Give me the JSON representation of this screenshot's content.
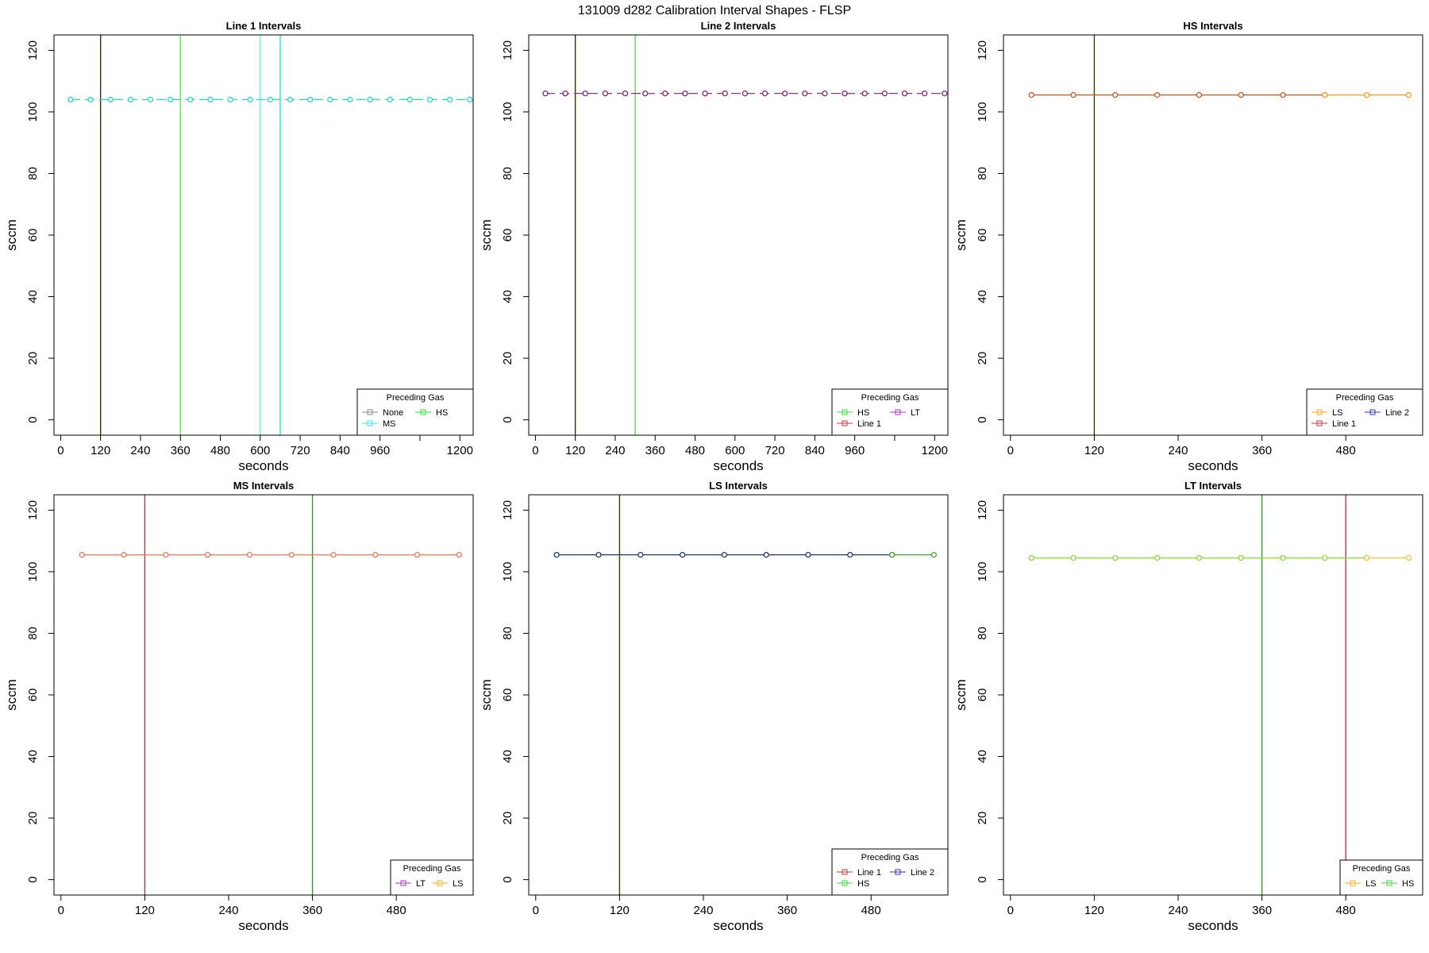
{
  "title": "131009   d282   Calibration Interval Shapes - FLSP",
  "legend_title": "Preceding Gas",
  "chart_data": [
    {
      "type": "line",
      "title": "Line 1 Intervals",
      "xlabel": "seconds",
      "ylabel": "sccm",
      "xlim": [
        -20,
        1240
      ],
      "ylim": [
        -5,
        125
      ],
      "xticks": [
        0,
        120,
        240,
        360,
        480,
        600,
        720,
        840,
        960,
        1080,
        1200
      ],
      "xtick_labels": [
        "0",
        "120",
        "240",
        "360",
        "480",
        "600",
        "720",
        "840",
        "960",
        "",
        "1200"
      ],
      "yticks": [
        0,
        20,
        40,
        60,
        80,
        100,
        120
      ],
      "legend_entries": [
        {
          "label": "None",
          "color": "#888888"
        },
        {
          "label": "HS",
          "color": "#33dd33"
        },
        {
          "label": "MS",
          "color": "#33e8e8"
        }
      ],
      "legend_cols": 2,
      "vlines": [
        {
          "x": 120,
          "color": "#333300"
        },
        {
          "x": 360,
          "color": "#66dd66"
        },
        {
          "x": 600,
          "color": "#66eeee"
        },
        {
          "x": 660,
          "color": "#33dddd"
        }
      ],
      "series": [
        {
          "color": "#22dcc8",
          "dashed": true,
          "x": [
            30,
            90,
            150,
            210,
            270,
            330,
            390,
            450,
            510,
            570,
            630,
            690,
            750,
            810,
            870,
            930,
            990,
            1050,
            1110,
            1170,
            1230
          ],
          "y": [
            104,
            104,
            104,
            104,
            104,
            104,
            104,
            104,
            104,
            104,
            104,
            104,
            104,
            104,
            104,
            104,
            104,
            104,
            104,
            104,
            104
          ]
        }
      ]
    },
    {
      "type": "line",
      "title": "Line 2 Intervals",
      "xlabel": "seconds",
      "ylabel": "sccm",
      "xlim": [
        -20,
        1240
      ],
      "ylim": [
        -5,
        125
      ],
      "xticks": [
        0,
        120,
        240,
        360,
        480,
        600,
        720,
        840,
        960,
        1080,
        1200
      ],
      "xtick_labels": [
        "0",
        "120",
        "240",
        "360",
        "480",
        "600",
        "720",
        "840",
        "960",
        "",
        "1200"
      ],
      "yticks": [
        0,
        20,
        40,
        60,
        80,
        100,
        120
      ],
      "legend_entries": [
        {
          "label": "HS",
          "color": "#33dd33"
        },
        {
          "label": "LT",
          "color": "#aa33cc"
        },
        {
          "label": "Line 1",
          "color": "#dd3333"
        }
      ],
      "legend_cols": 2,
      "vlines": [
        {
          "x": 120,
          "color": "#333300"
        },
        {
          "x": 300,
          "color": "#66dd44"
        }
      ],
      "series": [
        {
          "color": "#882266",
          "dashed": true,
          "x": [
            30,
            90,
            150,
            210,
            270,
            330,
            390,
            450,
            510,
            570,
            630,
            690,
            750,
            810,
            870,
            930,
            990,
            1050,
            1110,
            1170,
            1230
          ],
          "y": [
            106,
            106,
            106,
            106,
            106,
            106,
            106,
            106,
            106,
            106,
            106,
            106,
            106,
            106,
            106,
            106,
            106,
            106,
            106,
            106,
            106
          ]
        }
      ]
    },
    {
      "type": "line",
      "title": "HS Intervals",
      "xlabel": "seconds",
      "ylabel": "sccm",
      "xlim": [
        -10,
        590
      ],
      "ylim": [
        -5,
        125
      ],
      "xticks": [
        0,
        120,
        240,
        360,
        480
      ],
      "xtick_labels": [
        "0",
        "120",
        "240",
        "360",
        "480"
      ],
      "yticks": [
        0,
        20,
        40,
        60,
        80,
        100,
        120
      ],
      "legend_entries": [
        {
          "label": "LS",
          "color": "#ffaa22"
        },
        {
          "label": "Line 2",
          "color": "#3333cc"
        },
        {
          "label": "Line 1",
          "color": "#dd3333"
        }
      ],
      "legend_cols": 2,
      "vlines": [
        {
          "x": 120,
          "color": "#2a4a00"
        }
      ],
      "series": [
        {
          "color": "#cc5522",
          "dashed": false,
          "x": [
            30,
            90,
            150,
            210,
            270,
            330,
            390,
            450
          ],
          "y": [
            105.5,
            105.5,
            105.5,
            105.5,
            105.5,
            105.5,
            105.5,
            105.5
          ]
        },
        {
          "color": "#ff9922",
          "dashed": false,
          "x": [
            450,
            510,
            570
          ],
          "y": [
            105.5,
            105.5,
            105.5
          ]
        }
      ]
    },
    {
      "type": "line",
      "title": "MS Intervals",
      "xlabel": "seconds",
      "ylabel": "sccm",
      "xlim": [
        -10,
        590
      ],
      "ylim": [
        -5,
        125
      ],
      "xticks": [
        0,
        120,
        240,
        360,
        480
      ],
      "xtick_labels": [
        "0",
        "120",
        "240",
        "360",
        "480"
      ],
      "yticks": [
        0,
        20,
        40,
        60,
        80,
        100,
        120
      ],
      "legend_entries": [
        {
          "label": "LT",
          "color": "#aa33cc"
        },
        {
          "label": "LS",
          "color": "#ffaa22"
        }
      ],
      "legend_cols": 2,
      "vlines": [
        {
          "x": 120,
          "color": "#aa4433"
        },
        {
          "x": 360,
          "color": "#339933"
        }
      ],
      "series": [
        {
          "color": "#ee7755",
          "dashed": false,
          "x": [
            30,
            90,
            150,
            210,
            270,
            330,
            390,
            450,
            510,
            570
          ],
          "y": [
            105.5,
            105.5,
            105.5,
            105.5,
            105.5,
            105.5,
            105.5,
            105.5,
            105.5,
            105.5
          ]
        }
      ]
    },
    {
      "type": "line",
      "title": "LS Intervals",
      "xlabel": "seconds",
      "ylabel": "sccm",
      "xlim": [
        -10,
        590
      ],
      "ylim": [
        -5,
        125
      ],
      "xticks": [
        0,
        120,
        240,
        360,
        480
      ],
      "xtick_labels": [
        "0",
        "120",
        "240",
        "360",
        "480"
      ],
      "yticks": [
        0,
        20,
        40,
        60,
        80,
        100,
        120
      ],
      "legend_entries": [
        {
          "label": "Line 1",
          "color": "#dd3333"
        },
        {
          "label": "Line 2",
          "color": "#3333cc"
        },
        {
          "label": "HS",
          "color": "#33dd33"
        }
      ],
      "legend_cols": 2,
      "vlines": [
        {
          "x": 120,
          "color": "#2a4a00"
        }
      ],
      "series": [
        {
          "color": "#223377",
          "dashed": false,
          "x": [
            30,
            90,
            150,
            210,
            270,
            330,
            390,
            450,
            510
          ],
          "y": [
            105.5,
            105.5,
            105.5,
            105.5,
            105.5,
            105.5,
            105.5,
            105.5,
            105.5
          ]
        },
        {
          "color": "#44aa22",
          "dashed": false,
          "x": [
            510,
            570
          ],
          "y": [
            105.5,
            105.5
          ]
        }
      ]
    },
    {
      "type": "line",
      "title": "LT Intervals",
      "xlabel": "seconds",
      "ylabel": "sccm",
      "xlim": [
        -10,
        590
      ],
      "ylim": [
        -5,
        125
      ],
      "xticks": [
        0,
        120,
        240,
        360,
        480
      ],
      "xtick_labels": [
        "0",
        "120",
        "240",
        "360",
        "480"
      ],
      "yticks": [
        0,
        20,
        40,
        60,
        80,
        100,
        120
      ],
      "legend_entries": [
        {
          "label": "LS",
          "color": "#ffaa22"
        },
        {
          "label": "HS",
          "color": "#33dd33"
        }
      ],
      "legend_cols": 2,
      "vlines": [
        {
          "x": 360,
          "color": "#339933"
        },
        {
          "x": 480,
          "color": "#bb3355"
        }
      ],
      "series": [
        {
          "color": "#88dd33",
          "dashed": false,
          "x": [
            30,
            90,
            150,
            210,
            270,
            330,
            390,
            450,
            510
          ],
          "y": [
            104.5,
            104.5,
            104.5,
            104.5,
            104.5,
            104.5,
            104.5,
            104.5,
            104.5
          ]
        },
        {
          "color": "#ffbb44",
          "dashed": false,
          "x": [
            510,
            570
          ],
          "y": [
            104.5,
            104.5
          ]
        }
      ]
    }
  ]
}
